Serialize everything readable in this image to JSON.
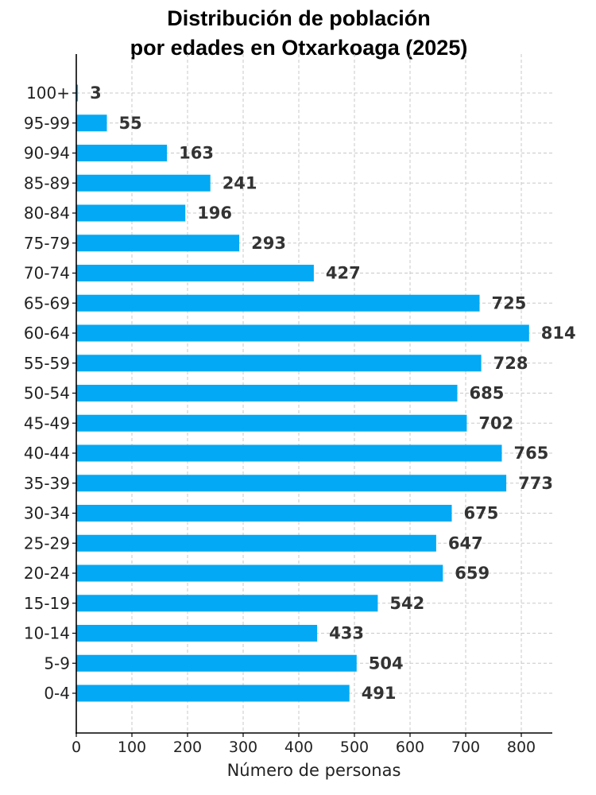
{
  "chart_data": {
    "type": "bar",
    "orientation": "horizontal",
    "title_lines": [
      "Distribución de población",
      "por edades en Otxarkoaga (2025)"
    ],
    "xlabel": "Número de personas",
    "ylabel": "",
    "xlim": [
      0,
      855
    ],
    "xticks": [
      0,
      100,
      200,
      300,
      400,
      500,
      600,
      700,
      800
    ],
    "grid": true,
    "bar_color": "#03A9F4",
    "categories": [
      "0-4",
      "5-9",
      "10-14",
      "15-19",
      "20-24",
      "25-29",
      "30-34",
      "35-39",
      "40-44",
      "45-49",
      "50-54",
      "55-59",
      "60-64",
      "65-69",
      "70-74",
      "75-79",
      "80-84",
      "85-89",
      "90-94",
      "95-99",
      "100+"
    ],
    "values": [
      491,
      504,
      433,
      542,
      659,
      647,
      675,
      773,
      765,
      702,
      685,
      728,
      814,
      725,
      427,
      293,
      196,
      241,
      163,
      55,
      3
    ]
  }
}
